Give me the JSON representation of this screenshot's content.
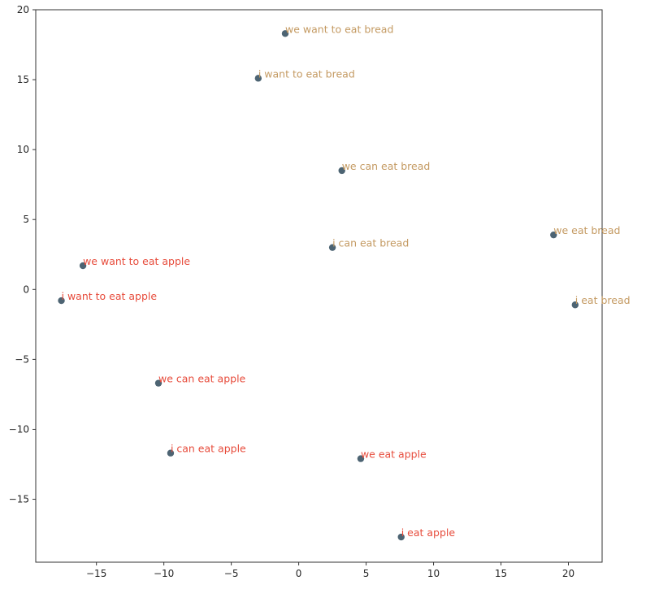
{
  "chart_data": {
    "type": "scatter",
    "title": "",
    "xlabel": "",
    "ylabel": "",
    "xlim": [
      -19.5,
      22.5
    ],
    "ylim": [
      -19.5,
      20.0
    ],
    "x_ticks": [
      -15,
      -10,
      -5,
      0,
      5,
      10,
      15,
      20
    ],
    "y_ticks": [
      -15,
      -10,
      -5,
      0,
      5,
      10,
      15,
      20
    ],
    "grid": false,
    "marker_color": "#4d6473",
    "label_colors": {
      "bread": "#c49a62",
      "apple": "#e74c3c"
    },
    "points": [
      {
        "label": "we want to eat bread",
        "x": -1.0,
        "y": 18.3,
        "group": "bread"
      },
      {
        "label": "i want to eat bread",
        "x": -3.0,
        "y": 15.1,
        "group": "bread"
      },
      {
        "label": "we can eat bread",
        "x": 3.2,
        "y": 8.5,
        "group": "bread"
      },
      {
        "label": "i can eat bread",
        "x": 2.5,
        "y": 3.0,
        "group": "bread"
      },
      {
        "label": "we eat bread",
        "x": 18.9,
        "y": 3.9,
        "group": "bread"
      },
      {
        "label": "i eat bread",
        "x": 20.5,
        "y": -1.1,
        "group": "bread"
      },
      {
        "label": "we want to eat apple",
        "x": -16.0,
        "y": 1.7,
        "group": "apple"
      },
      {
        "label": "i want to eat apple",
        "x": -17.6,
        "y": -0.8,
        "group": "apple"
      },
      {
        "label": "we can eat apple",
        "x": -10.4,
        "y": -6.7,
        "group": "apple"
      },
      {
        "label": "i can eat apple",
        "x": -9.5,
        "y": -11.7,
        "group": "apple"
      },
      {
        "label": "we eat apple",
        "x": 4.6,
        "y": -12.1,
        "group": "apple"
      },
      {
        "label": "i eat apple",
        "x": 7.6,
        "y": -17.7,
        "group": "apple"
      }
    ]
  }
}
